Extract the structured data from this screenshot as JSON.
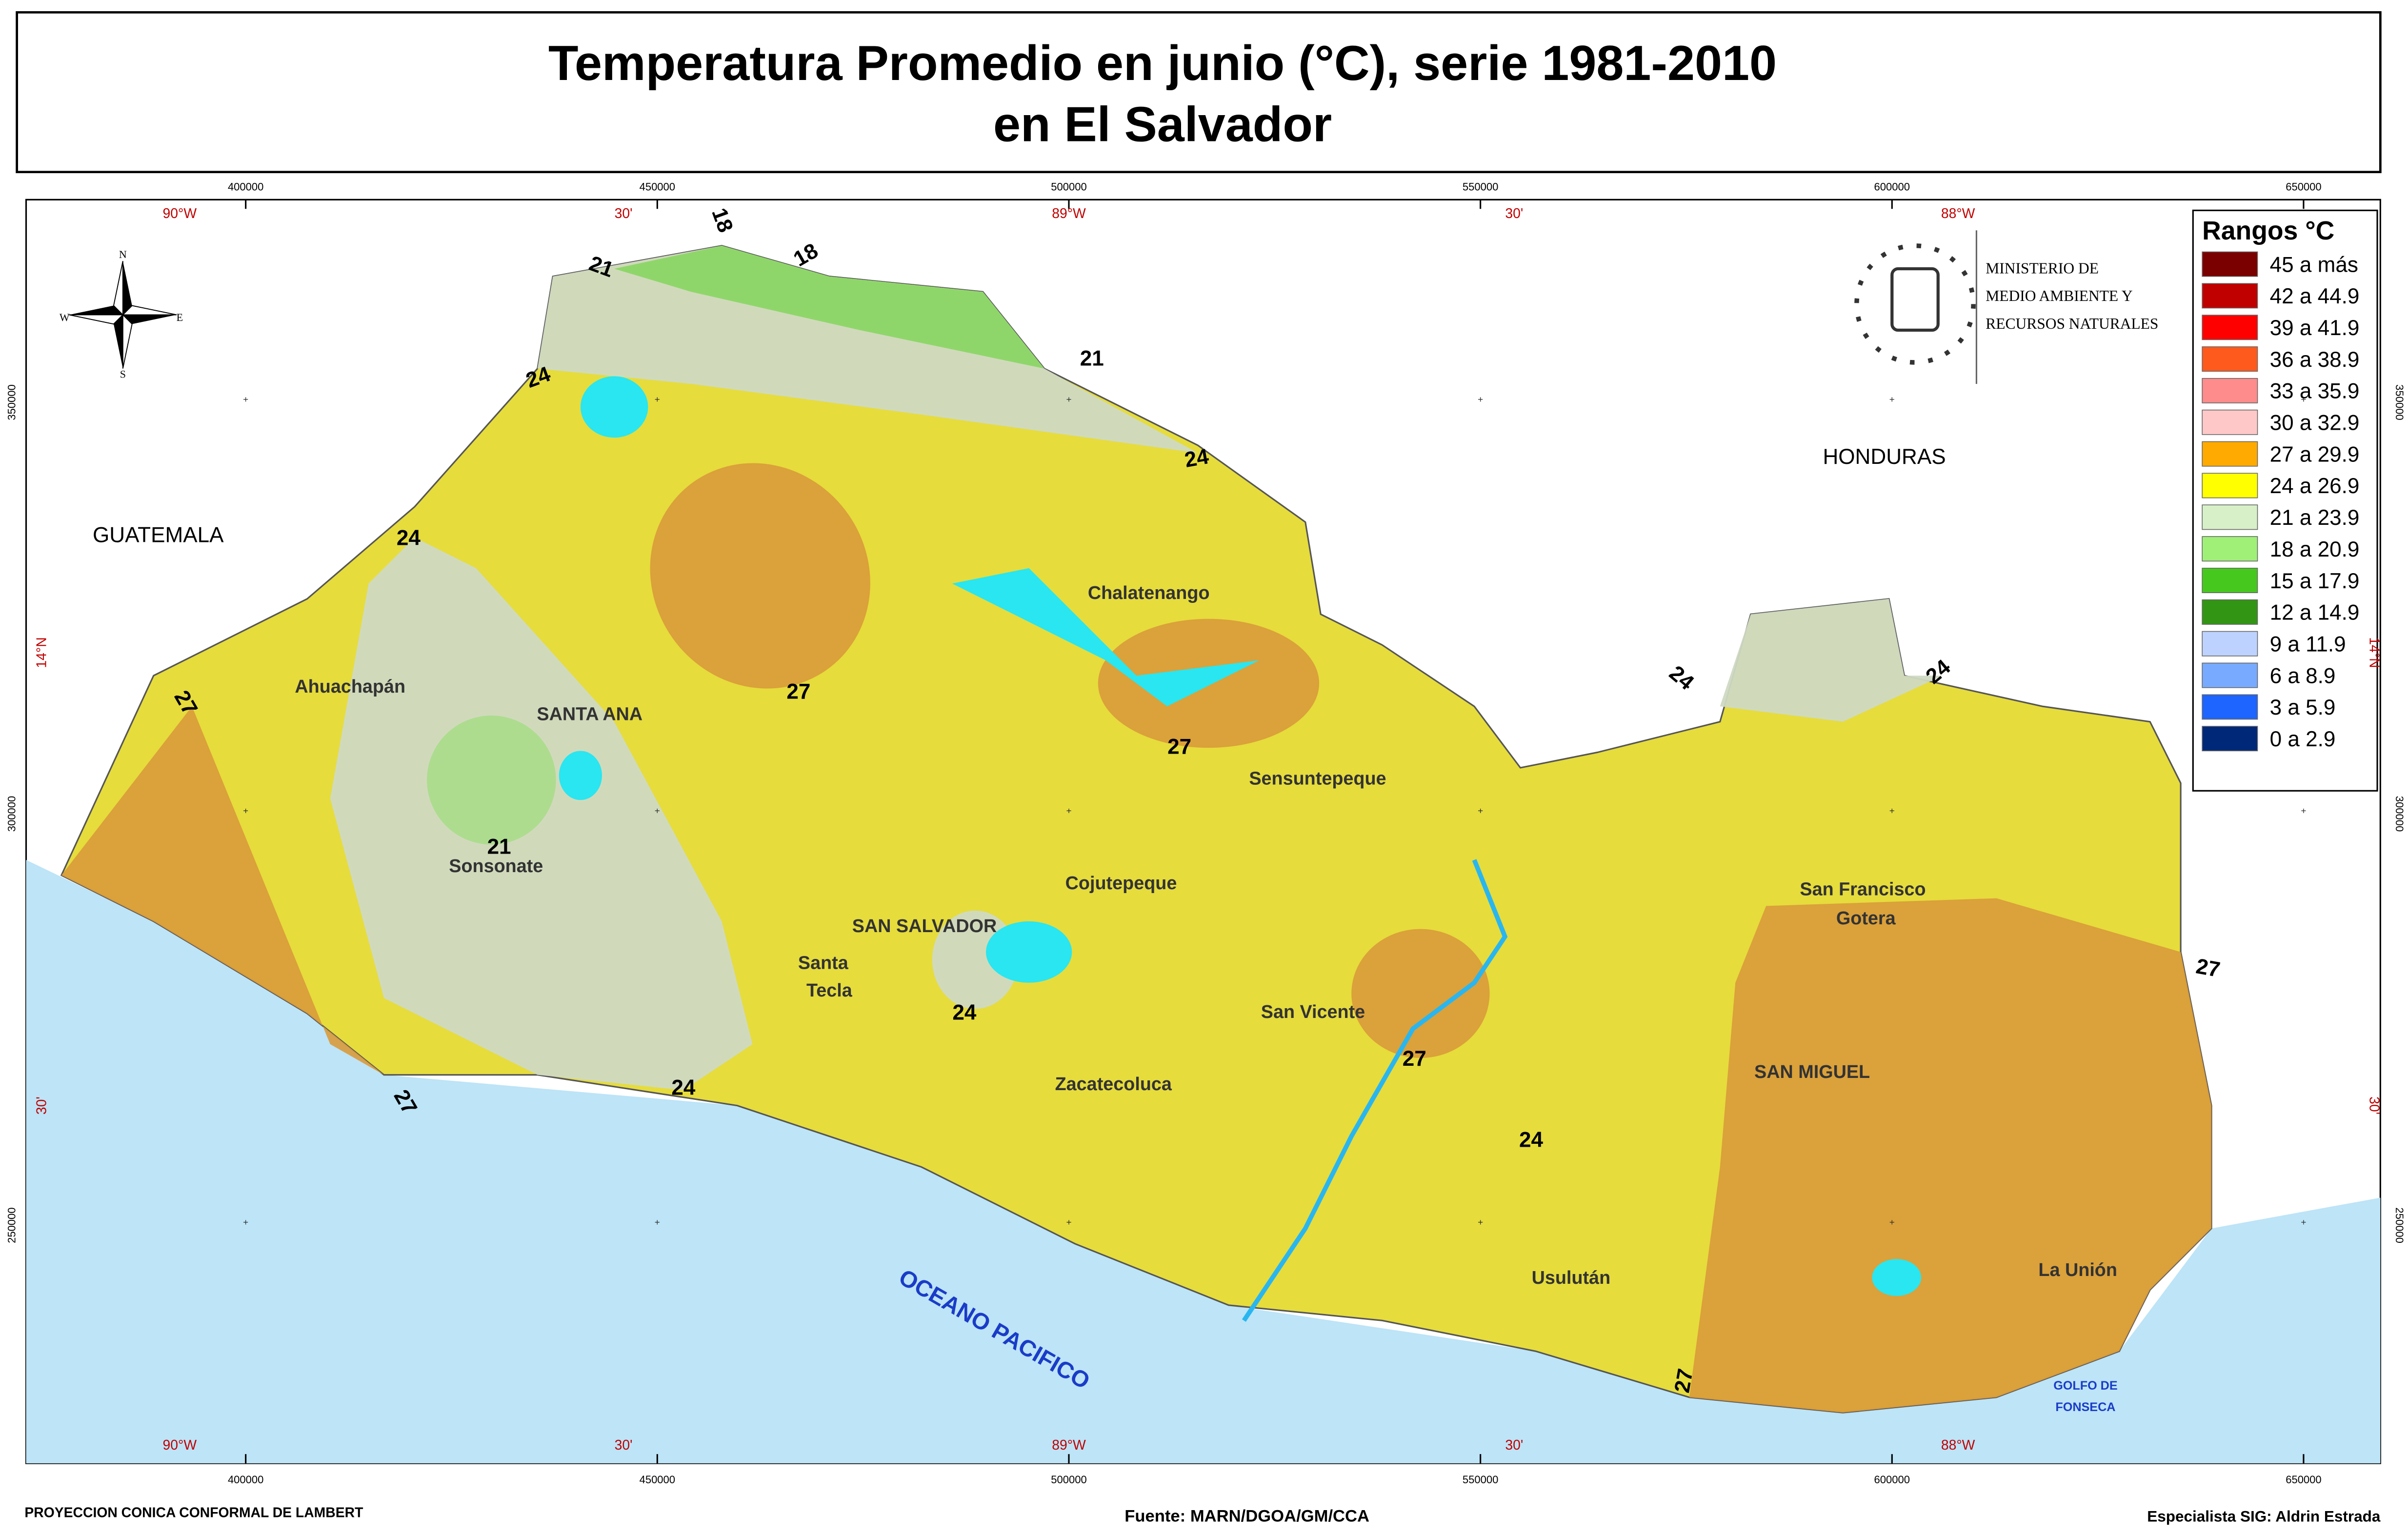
{
  "title": {
    "line1": "Temperatura Promedio en junio (°C), serie 1981-2010",
    "line2": "en El Salvador"
  },
  "grid": {
    "eastings": [
      "400000",
      "450000",
      "500000",
      "550000",
      "600000",
      "650000"
    ],
    "longitudes": [
      "90°W",
      "30'",
      "89°W",
      "30'",
      "88°W"
    ],
    "northings": [
      "350000",
      "300000",
      "250000"
    ],
    "latitudes": [
      "14°N",
      "30'"
    ]
  },
  "legend": {
    "title": "Rangos °C",
    "items": [
      {
        "label": "45 a más",
        "color": "#7a0000"
      },
      {
        "label": "42 a 44.9",
        "color": "#c00000"
      },
      {
        "label": "39 a 41.9",
        "color": "#ff0000"
      },
      {
        "label": "36 a 38.9",
        "color": "#ff5a1e"
      },
      {
        "label": "33 a 35.9",
        "color": "#ff8c8c"
      },
      {
        "label": "30 a 32.9",
        "color": "#ffc8c8"
      },
      {
        "label": "27 a 29.9",
        "color": "#ffaa00"
      },
      {
        "label": "24 a 26.9",
        "color": "#ffff00"
      },
      {
        "label": "21 a 23.9",
        "color": "#d7f0c8"
      },
      {
        "label": "18 a 20.9",
        "color": "#a0f078"
      },
      {
        "label": "15 a 17.9",
        "color": "#46c81e"
      },
      {
        "label": "12 a 14.9",
        "color": "#329614"
      },
      {
        "label": "9 a 11.9",
        "color": "#bed2ff"
      },
      {
        "label": "6 a 8.9",
        "color": "#78aaff"
      },
      {
        "label": "3 a 5.9",
        "color": "#1e64ff"
      },
      {
        "label": "0 a 2.9",
        "color": "#002878"
      }
    ]
  },
  "ministry": [
    "MINISTERIO DE",
    "MEDIO AMBIENTE Y",
    "RECURSOS NATURALES"
  ],
  "compass": [
    "N",
    "S",
    "E",
    "W"
  ],
  "places": [
    "GUATEMALA",
    "HONDURAS",
    "Chalatenango",
    "Ahuachapán",
    "SANTA ANA",
    "Sensuntepeque",
    "Sonsonate",
    "Cojutepeque",
    "SAN SALVADOR",
    "Santa",
    "Tecla",
    "San Francisco",
    "Gotera",
    "San Vicente",
    "Zacatecoluca",
    "SAN MIGUEL",
    "Usulután",
    "La Unión",
    "GOLFO DE",
    "FONSECA",
    "OCEANO PACIFICO"
  ],
  "isotherms": [
    18,
    18,
    21,
    21,
    24,
    24,
    24,
    27,
    27,
    27,
    21,
    24,
    24,
    27,
    27,
    24,
    24,
    24,
    27,
    27
  ],
  "footer": {
    "projection": "PROYECCION CONICA CONFORMAL DE LAMBERT",
    "source": "Fuente: MARN/DGOA/GM/CCA",
    "specialist": "Especialista SIG: Aldrin Estrada"
  }
}
